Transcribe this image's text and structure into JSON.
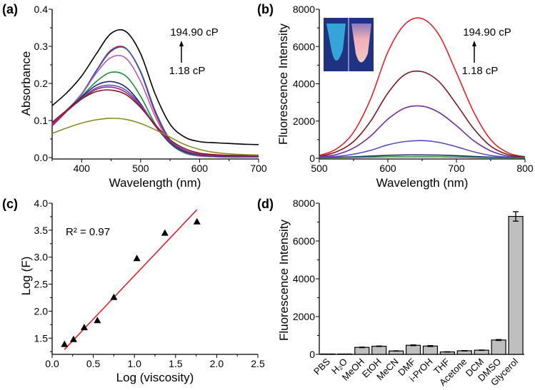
{
  "chart_data": [
    {
      "panel_label": "(a)",
      "type": "line",
      "xlabel": "Wavelength (nm)",
      "ylabel": "Absorbance",
      "xlim": [
        350,
        700
      ],
      "ylim": [
        0,
        0.4
      ],
      "xticks": [
        "400",
        "500",
        "600",
        "700"
      ],
      "yticks": [
        "0.0",
        "0.1",
        "0.2",
        "0.3",
        "0.4"
      ],
      "annotation_top": "194.90 cP",
      "annotation_bottom": "1.18 cP",
      "x": [
        350,
        375,
        400,
        425,
        450,
        475,
        500,
        525,
        550,
        575,
        600,
        625,
        650,
        675,
        700
      ],
      "series": [
        {
          "color": "#000000",
          "values": [
            0.14,
            0.175,
            0.22,
            0.28,
            0.335,
            0.34,
            0.28,
            0.17,
            0.09,
            0.055,
            0.043,
            0.04,
            0.038,
            0.036,
            0.035
          ]
        },
        {
          "color": "#e0202a",
          "values": [
            0.085,
            0.125,
            0.17,
            0.235,
            0.29,
            0.295,
            0.23,
            0.12,
            0.045,
            0.015,
            0.006,
            0.004,
            0.003,
            0.003,
            0.003
          ]
        },
        {
          "color": "#2453b8",
          "values": [
            0.088,
            0.128,
            0.172,
            0.234,
            0.287,
            0.294,
            0.232,
            0.125,
            0.048,
            0.017,
            0.007,
            0.004,
            0.003,
            0.003,
            0.003
          ]
        },
        {
          "color": "#b45ab8",
          "values": [
            0.09,
            0.128,
            0.17,
            0.228,
            0.27,
            0.268,
            0.205,
            0.11,
            0.04,
            0.012,
            0.004,
            0.002,
            0.001,
            0.001,
            0.001
          ]
        },
        {
          "color": "#1f8a3c",
          "values": [
            0.092,
            0.128,
            0.165,
            0.205,
            0.23,
            0.22,
            0.165,
            0.09,
            0.038,
            0.014,
            0.006,
            0.004,
            0.003,
            0.003,
            0.003
          ]
        },
        {
          "color": "#1c2a6e",
          "values": [
            0.092,
            0.128,
            0.163,
            0.195,
            0.205,
            0.19,
            0.145,
            0.085,
            0.04,
            0.016,
            0.007,
            0.004,
            0.003,
            0.003,
            0.003
          ]
        },
        {
          "color": "#6a4fc0",
          "values": [
            0.092,
            0.127,
            0.16,
            0.188,
            0.195,
            0.182,
            0.142,
            0.088,
            0.045,
            0.02,
            0.009,
            0.006,
            0.005,
            0.005,
            0.005
          ]
        },
        {
          "color": "#8a2a8a",
          "values": [
            0.09,
            0.125,
            0.158,
            0.184,
            0.19,
            0.176,
            0.138,
            0.085,
            0.042,
            0.018,
            0.008,
            0.005,
            0.004,
            0.004,
            0.004
          ]
        },
        {
          "color": "#8b1a1a",
          "values": [
            0.095,
            0.128,
            0.158,
            0.178,
            0.182,
            0.17,
            0.135,
            0.088,
            0.048,
            0.024,
            0.012,
            0.008,
            0.006,
            0.006,
            0.006
          ]
        },
        {
          "color": "#8a8a2a",
          "values": [
            0.065,
            0.08,
            0.093,
            0.102,
            0.106,
            0.103,
            0.092,
            0.075,
            0.055,
            0.035,
            0.022,
            0.014,
            0.01,
            0.008,
            0.007
          ]
        }
      ]
    },
    {
      "panel_label": "(b)",
      "type": "line",
      "xlabel": "Wavelength (nm)",
      "ylabel": "Fluorescence Intensity",
      "xlim": [
        500,
        800
      ],
      "ylim": [
        0,
        8000
      ],
      "xticks": [
        "500",
        "600",
        "700",
        "800"
      ],
      "yticks": [
        "0",
        "2000",
        "4000",
        "6000",
        "8000"
      ],
      "annotation_top": "194.90 cP",
      "annotation_bottom": "1.18 cP",
      "inset": "photo of two tubes under UV light: blue (left), pink (right)",
      "x": [
        500,
        525,
        550,
        575,
        600,
        625,
        650,
        675,
        700,
        725,
        750,
        775,
        800
      ],
      "series": [
        {
          "color": "#e8202a",
          "values": [
            150,
            500,
            1400,
            3200,
            5700,
            7200,
            7500,
            6600,
            4600,
            2500,
            1000,
            300,
            80
          ]
        },
        {
          "color": "#7b1a1f",
          "values": [
            100,
            350,
            900,
            2000,
            3500,
            4500,
            4650,
            4100,
            2900,
            1600,
            650,
            200,
            60
          ]
        },
        {
          "color": "#7030a0",
          "values": [
            80,
            200,
            550,
            1200,
            2100,
            2700,
            2800,
            2450,
            1750,
            950,
            400,
            120,
            40
          ]
        },
        {
          "color": "#5b4fc0",
          "values": [
            50,
            100,
            220,
            430,
            720,
            900,
            950,
            850,
            620,
            350,
            150,
            60,
            30
          ]
        },
        {
          "color": "#1f2d6a",
          "values": [
            30,
            50,
            80,
            120,
            160,
            180,
            180,
            170,
            140,
            100,
            60,
            40,
            30
          ]
        },
        {
          "color": "#2e8b3e",
          "values": [
            20,
            30,
            45,
            60,
            75,
            80,
            80,
            75,
            65,
            50,
            35,
            25,
            20
          ]
        }
      ]
    },
    {
      "panel_label": "(c)",
      "type": "scatter",
      "xlabel": "Log (viscosity)",
      "ylabel": "Log (F)",
      "xlim": [
        0,
        2.5
      ],
      "ylim": [
        1.2,
        4.0
      ],
      "xticks": [
        "0.0",
        "0.5",
        "1.0",
        "1.5",
        "2.0",
        "2.5"
      ],
      "yticks": [
        "1.5",
        "2.0",
        "2.5",
        "3.0",
        "3.5",
        "4.0"
      ],
      "annotation": "R² = 0.97",
      "points": {
        "x": [
          0.15,
          0.26,
          0.39,
          0.55,
          0.75,
          1.03,
          1.37,
          1.76
        ],
        "y": [
          1.39,
          1.48,
          1.7,
          1.83,
          2.26,
          2.98,
          3.45,
          3.66
        ]
      },
      "fit_line": {
        "color": "#e8202a",
        "x": [
          0.15,
          1.76
        ],
        "y": [
          1.29,
          3.88
        ]
      }
    },
    {
      "panel_label": "(d)",
      "type": "bar",
      "xlabel": "",
      "ylabel": "Fluorescence Intensity",
      "ylim": [
        0,
        8000
      ],
      "yticks": [
        "0",
        "2000",
        "4000",
        "6000",
        "8000"
      ],
      "bar_color": "#bfbfbf",
      "categories": [
        "PBS",
        "H₂O",
        "MeOH",
        "EtOH",
        "MeCN",
        "DMF",
        "i-PrOH",
        "THF",
        "Acetone",
        "DCM",
        "DMSO",
        "Glycerol"
      ],
      "values": [
        20,
        20,
        370,
        430,
        180,
        480,
        440,
        130,
        190,
        220,
        760,
        7300
      ],
      "errors": [
        0,
        0,
        15,
        15,
        10,
        20,
        25,
        10,
        10,
        10,
        25,
        250
      ]
    }
  ]
}
